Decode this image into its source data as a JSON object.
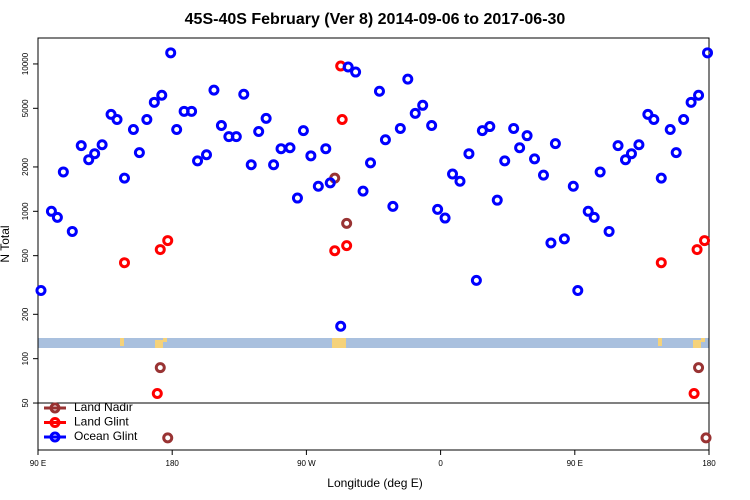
{
  "chart_data": {
    "type": "scatter",
    "title": "45S-40S February (Ver 8)   2014-09-06 to 2017-06-30",
    "x_label": "Longitude (deg E)",
    "y_label": "N Total",
    "log_y": true,
    "legend": "bottom-left",
    "xlim": [
      90,
      540
    ],
    "ylim": [
      24,
      15000
    ],
    "xticks": [
      {
        "value": 90,
        "label": "90 E"
      },
      180,
      {
        "value": 270,
        "label": "90 W"
      },
      {
        "value": 360,
        "label": "0"
      },
      {
        "value": 450,
        "label": "90 E"
      },
      {
        "value": 540,
        "label": "180"
      }
    ],
    "yticks": [
      50,
      100,
      200,
      500,
      1000,
      2000,
      5000,
      10000
    ],
    "series": [
      {
        "name": "Land Nadir",
        "color": "#993333",
        "x": [
          172,
          177,
          289,
          297,
          533,
          538
        ],
        "values": [
          87,
          29,
          1680,
          828,
          87,
          29
        ]
      },
      {
        "name": "Land Glint",
        "color": "#ff0000",
        "x": [
          148,
          172,
          177,
          170,
          289,
          293,
          294,
          297,
          508,
          532,
          537,
          530
        ],
        "values": [
          448,
          550,
          633,
          58,
          540,
          9690,
          4200,
          585,
          448,
          550,
          633,
          58
        ]
      },
      {
        "name": "Ocean Glint",
        "color": "#0000ff",
        "x": [
          92,
          99,
          103,
          107,
          113,
          119,
          124,
          128,
          133,
          139,
          143,
          148,
          154,
          158,
          163,
          168,
          173,
          179,
          183,
          188,
          193,
          197,
          203,
          208,
          213,
          218,
          223,
          228,
          233,
          238,
          243,
          248,
          253,
          259,
          264,
          268,
          273,
          278,
          283,
          286,
          293,
          298,
          303,
          308,
          313,
          319,
          323,
          328,
          333,
          338,
          343,
          348,
          354,
          358,
          363,
          368,
          373,
          379,
          384,
          388,
          393,
          398,
          403,
          409,
          413,
          418,
          423,
          429,
          434,
          437,
          443,
          449,
          452,
          459,
          463,
          467,
          473,
          479,
          484,
          488,
          493,
          499,
          503,
          508,
          514,
          518,
          523,
          528,
          533,
          539
        ],
        "values": [
          290,
          1000,
          910,
          1850,
          730,
          2790,
          2240,
          2460,
          2830,
          4550,
          4200,
          1680,
          3590,
          2500,
          4200,
          5490,
          6130,
          11900,
          3590,
          4770,
          4770,
          2200,
          2420,
          6640,
          3820,
          3210,
          3210,
          6230,
          2070,
          3480,
          4270,
          2070,
          2660,
          2700,
          1230,
          3530,
          2380,
          1480,
          2660,
          1560,
          166,
          9540,
          8810,
          1370,
          2130,
          6530,
          3060,
          1080,
          3650,
          7890,
          4620,
          5240,
          3820,
          1030,
          900,
          1790,
          1600,
          2460,
          340,
          3530,
          3760,
          1190,
          2200,
          3650,
          2700,
          3260,
          2270,
          1760,
          610,
          2880,
          650,
          1480,
          290,
          1000,
          910,
          1850,
          730,
          2790,
          2240,
          2460,
          2830,
          4550,
          4200,
          1680,
          3590,
          2500,
          4200,
          5490,
          6130,
          11900
        ]
      }
    ]
  }
}
